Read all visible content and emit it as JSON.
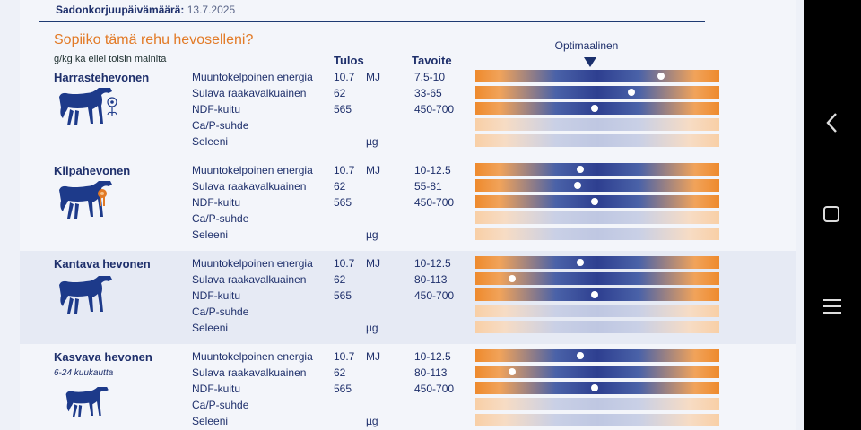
{
  "header": {
    "harvest_label": "Sadonkorjuupäivämäärä:",
    "harvest_date": "13.7.2025"
  },
  "title": "Sopiiko tämä rehu hevoselleni?",
  "unit_note": "g/kg ka ellei toisin mainita",
  "columns": {
    "result": "Tulos",
    "target": "Tavoite",
    "optimal": "Optimaalinen"
  },
  "colors": {
    "accent": "#e27a26",
    "navy": "#1e2f6b",
    "orange_bar": "#ee8a2d",
    "blue_bar": "#2e3f90"
  },
  "sections": [
    {
      "title": "Harrastehevonen",
      "subtitle": "",
      "icon": "horse-with-flower-icon",
      "rows": [
        {
          "label": "Muuntokelpoinen energia",
          "value": "10.7",
          "unit": "MJ",
          "target": "7.5-10",
          "marker": 0.76
        },
        {
          "label": "Sulava raakavalkuainen",
          "value": "62",
          "unit": "",
          "target": "33-65",
          "marker": 0.64
        },
        {
          "label": "NDF-kuitu",
          "value": "565",
          "unit": "",
          "target": "450-700",
          "marker": 0.49
        },
        {
          "label": "Ca/P-suhde",
          "value": "",
          "unit": "",
          "target": "",
          "marker": null
        },
        {
          "label": "Seleeni",
          "value": "",
          "unit": "µg",
          "target": "",
          "marker": null
        }
      ]
    },
    {
      "title": "Kilpahevonen",
      "subtitle": "",
      "icon": "horse-with-rosette-icon",
      "rows": [
        {
          "label": "Muuntokelpoinen energia",
          "value": "10.7",
          "unit": "MJ",
          "target": "10-12.5",
          "marker": 0.43
        },
        {
          "label": "Sulava raakavalkuainen",
          "value": "62",
          "unit": "",
          "target": "55-81",
          "marker": 0.42
        },
        {
          "label": "NDF-kuitu",
          "value": "565",
          "unit": "",
          "target": "450-700",
          "marker": 0.49
        },
        {
          "label": "Ca/P-suhde",
          "value": "",
          "unit": "",
          "target": "",
          "marker": null
        },
        {
          "label": "Seleeni",
          "value": "",
          "unit": "µg",
          "target": "",
          "marker": null
        }
      ]
    },
    {
      "title": "Kantava hevonen",
      "subtitle": "",
      "icon": "pregnant-horse-icon",
      "rows": [
        {
          "label": "Muuntokelpoinen energia",
          "value": "10.7",
          "unit": "MJ",
          "target": "10-12.5",
          "marker": 0.43
        },
        {
          "label": "Sulava raakavalkuainen",
          "value": "62",
          "unit": "",
          "target": "80-113",
          "marker": 0.15
        },
        {
          "label": "NDF-kuitu",
          "value": "565",
          "unit": "",
          "target": "450-700",
          "marker": 0.49
        },
        {
          "label": "Ca/P-suhde",
          "value": "",
          "unit": "",
          "target": "",
          "marker": null
        },
        {
          "label": "Seleeni",
          "value": "",
          "unit": "µg",
          "target": "",
          "marker": null
        }
      ]
    },
    {
      "title": "Kasvava hevonen",
      "subtitle": "6-24 kuukautta",
      "icon": "young-horse-icon",
      "rows": [
        {
          "label": "Muuntokelpoinen energia",
          "value": "10.7",
          "unit": "MJ",
          "target": "10-12.5",
          "marker": 0.43
        },
        {
          "label": "Sulava raakavalkuainen",
          "value": "62",
          "unit": "",
          "target": "80-113",
          "marker": 0.15
        },
        {
          "label": "NDF-kuitu",
          "value": "565",
          "unit": "",
          "target": "450-700",
          "marker": 0.49
        },
        {
          "label": "Ca/P-suhde",
          "value": "",
          "unit": "",
          "target": "",
          "marker": null
        },
        {
          "label": "Seleeni",
          "value": "",
          "unit": "µg",
          "target": "",
          "marker": null
        }
      ]
    }
  ],
  "nav": {
    "back": "back-icon",
    "home": "home-icon",
    "menu": "menu-icon"
  }
}
